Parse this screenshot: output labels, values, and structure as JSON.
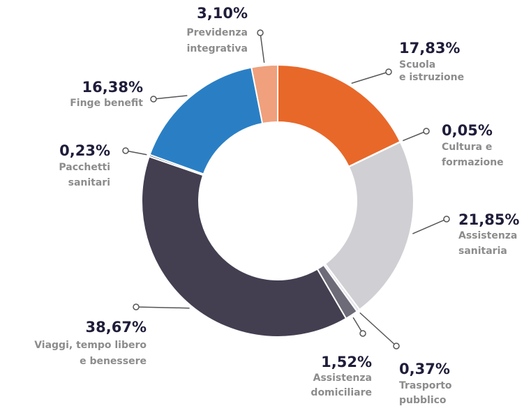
{
  "chart_data": {
    "type": "donut",
    "categories": [
      [
        "Scuola",
        "e istruzione"
      ],
      [
        "Cultura e",
        "formazione"
      ],
      [
        "Assistenza",
        "sanitaria"
      ],
      [
        "Trasporto",
        "pubblico"
      ],
      [
        "Assistenza",
        "domiciliare"
      ],
      [
        "Viaggi, tempo libero",
        "e benessere"
      ],
      [
        "Pacchetti",
        "sanitari"
      ],
      [
        "Finge benefit"
      ],
      [
        "Previdenza",
        "integrativa"
      ]
    ],
    "values": [
      17.83,
      0.05,
      21.85,
      0.37,
      1.52,
      38.67,
      0.23,
      16.38,
      3.1
    ],
    "value_labels": [
      "17,83%",
      "0,05%",
      "21,85%",
      "0,37%",
      "1,52%",
      "38,67%",
      "0,23%",
      "16,38%",
      "3,10%"
    ],
    "colors": [
      "#e8682a",
      "#d9d8dc",
      "#d0cfd4",
      "#e4e6ec",
      "#6e6b78",
      "#433f51",
      "#55526a",
      "#2a7fc4",
      "#f0a07c"
    ]
  }
}
